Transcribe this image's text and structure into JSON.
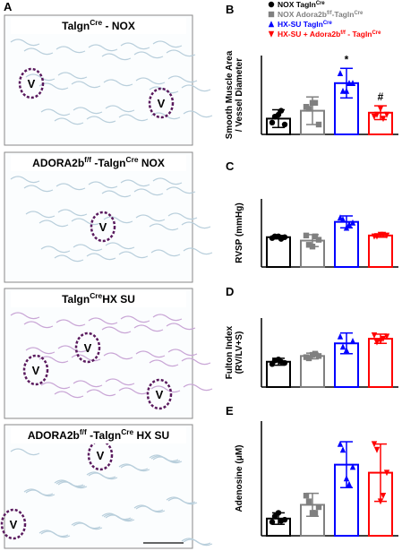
{
  "figure_panel": {
    "label": "A",
    "images": [
      {
        "caption": [
          "Talgn",
          "Cre",
          " - NOX"
        ],
        "vessel_labels": [
          "V",
          "V"
        ]
      },
      {
        "caption": [
          "ADORA2b",
          "f/f",
          " -Talgn",
          "Cre",
          " NOX"
        ],
        "vessel_labels": [
          "V"
        ]
      },
      {
        "caption": [
          "Talgn",
          "Cre",
          "HX  SU"
        ],
        "vessel_labels": [
          "V",
          "V",
          "V"
        ]
      },
      {
        "caption": [
          "ADORA2b",
          "f/f",
          " -Talgn",
          "Cre",
          " HX SU"
        ],
        "vessel_labels": [
          "V",
          "V"
        ]
      }
    ]
  },
  "chart_data": [
    {
      "type": "bar",
      "panel": "B",
      "ylabel": [
        "Smooth Muscle Area",
        "/ Vessel Diameter"
      ],
      "ylim": [
        0,
        0.4
      ],
      "series": [
        {
          "name": [
            "NOX Tagln",
            "Cre"
          ],
          "color": "#000000",
          "marker": "circle",
          "values": [
            0.08
          ],
          "errors": [
            0.045
          ],
          "points": [
            0.06,
            0.1,
            0.05,
            0.09,
            0.12
          ]
        },
        {
          "name": [
            "NOX Adora2b",
            "f/f",
            "-Tagln",
            "Cre"
          ],
          "color": "#808080",
          "marker": "square",
          "values": [
            0.12
          ],
          "errors": [
            0.07
          ],
          "points": [
            0.14,
            0.16,
            0.05,
            0.13,
            0.16
          ]
        },
        {
          "name": [
            "HX-SU Tagln",
            "Cre"
          ],
          "color": "#0000ff",
          "marker": "triangle-up",
          "values": [
            0.26
          ],
          "errors": [
            0.075
          ],
          "points": [
            0.31,
            0.22,
            0.26,
            0.22,
            0.26
          ],
          "annotation": "*"
        },
        {
          "name": [
            "HX-SU + Adora2b",
            "f/f",
            " - Tagln",
            "Cre"
          ],
          "color": "#ff0000",
          "marker": "triangle-down",
          "values": [
            0.11
          ],
          "errors": [
            0.035
          ],
          "points": [
            0.09,
            0.13,
            0.1,
            0.1,
            0.08
          ],
          "annotation": "#"
        }
      ]
    },
    {
      "type": "bar",
      "panel": "C",
      "ylabel": [
        "RVSP (mmHg)"
      ],
      "ylim": [
        0,
        40
      ],
      "series": [
        {
          "color": "#000000",
          "marker": "circle",
          "values": [
            17.5
          ],
          "errors": [
            1
          ],
          "points": [
            17,
            18,
            17.5,
            18,
            16.5
          ]
        },
        {
          "color": "#808080",
          "marker": "square",
          "values": [
            15.5
          ],
          "errors": [
            3.5
          ],
          "points": [
            18.5,
            12,
            16,
            13,
            18
          ]
        },
        {
          "color": "#0000ff",
          "marker": "triangle-up",
          "values": [
            26.5
          ],
          "errors": [
            3.5
          ],
          "points": [
            29,
            23,
            26,
            28,
            25
          ]
        },
        {
          "color": "#ff0000",
          "marker": "triangle-down",
          "values": [
            18.5
          ],
          "errors": [
            1
          ],
          "points": [
            18,
            19,
            18.5,
            18,
            19
          ]
        }
      ],
      "annotations_on": null
    },
    {
      "type": "bar",
      "panel": "D",
      "ylabel": [
        "Fulton Index",
        "(RV/LV+S)"
      ],
      "ylim": [
        0,
        0.6
      ],
      "series": [
        {
          "color": "#000000",
          "marker": "circle",
          "values": [
            0.22
          ],
          "errors": [
            0.03
          ],
          "points": [
            0.2,
            0.24,
            0.21,
            0.23,
            0.22
          ]
        },
        {
          "color": "#808080",
          "marker": "square",
          "values": [
            0.27
          ],
          "errors": [
            0.025
          ],
          "points": [
            0.26,
            0.28,
            0.27,
            0.25,
            0.29
          ]
        },
        {
          "color": "#0000ff",
          "marker": "triangle-up",
          "values": [
            0.38
          ],
          "errors": [
            0.09
          ],
          "points": [
            0.44,
            0.32,
            0.4,
            0.35
          ]
        },
        {
          "color": "#ff0000",
          "marker": "triangle-down",
          "values": [
            0.42
          ],
          "errors": [
            0.04
          ],
          "points": [
            0.45,
            0.4,
            0.44,
            0.39,
            0.42
          ]
        }
      ]
    },
    {
      "type": "bar",
      "panel": "E",
      "ylabel": [
        "Adenosine (μM)"
      ],
      "ylim": [
        0,
        1
      ],
      "series": [
        {
          "color": "#000000",
          "marker": "circle",
          "values": [
            0.15
          ],
          "errors": [
            0.05
          ],
          "points": [
            0.12,
            0.2,
            0.14,
            0.17,
            0.13
          ]
        },
        {
          "color": "#808080",
          "marker": "square",
          "values": [
            0.27
          ],
          "errors": [
            0.1
          ],
          "points": [
            0.35,
            0.2,
            0.25,
            0.3,
            0.2
          ]
        },
        {
          "color": "#0000ff",
          "marker": "triangle-up",
          "values": [
            0.62
          ],
          "errors": [
            0.2
          ],
          "points": [
            0.8,
            0.5,
            0.6,
            0.75,
            0.45
          ]
        },
        {
          "color": "#ff0000",
          "marker": "triangle-down",
          "values": [
            0.55
          ],
          "errors": [
            0.25
          ],
          "points": [
            0.8,
            0.3,
            0.55,
            0.75,
            0.35
          ]
        }
      ]
    }
  ]
}
